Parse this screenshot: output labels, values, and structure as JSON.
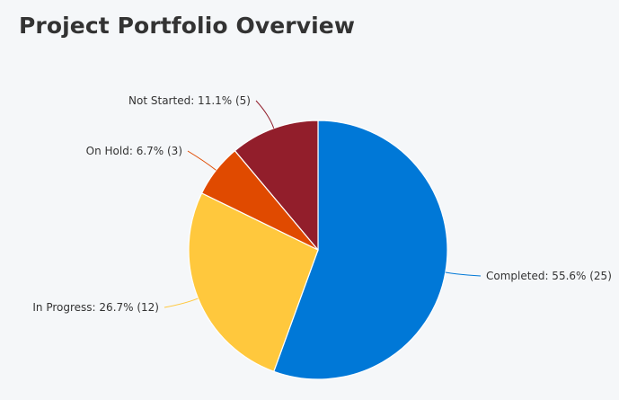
{
  "chart_data": {
    "type": "pie",
    "title": "Project Portfolio Overview",
    "slices": [
      {
        "name": "Completed",
        "value": 25,
        "percent": 55.6,
        "label": "Completed: 55.6% (25)",
        "color": "#0078d7"
      },
      {
        "name": "In Progress",
        "value": 12,
        "percent": 26.7,
        "label": "In Progress: 26.7% (12)",
        "color": "#ffc83d"
      },
      {
        "name": "On Hold",
        "value": 3,
        "percent": 6.7,
        "label": "On Hold: 6.7% (3)",
        "color": "#e04a00"
      },
      {
        "name": "Not Started",
        "value": 5,
        "percent": 11.1,
        "label": "Not Started: 11.1% (5)",
        "color": "#921e2b"
      }
    ],
    "legend": "none",
    "labels": "outside-with-leader-lines",
    "start_angle": "12 o'clock",
    "direction": "clockwise"
  }
}
